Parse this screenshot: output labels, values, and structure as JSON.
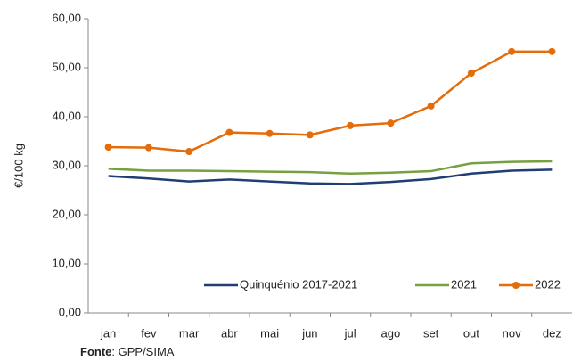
{
  "chart_data": {
    "type": "line",
    "y_label": "€/100 kg",
    "categories": [
      "jan",
      "fev",
      "mar",
      "abr",
      "mai",
      "jun",
      "jul",
      "ago",
      "set",
      "out",
      "nov",
      "dez"
    ],
    "series": [
      {
        "name": "Quinquénio  2017-2021",
        "color": "#1f3f73",
        "marker": false,
        "values": [
          27.9,
          27.4,
          26.8,
          27.2,
          26.8,
          26.4,
          26.3,
          26.7,
          27.3,
          28.4,
          29.0,
          29.2
        ]
      },
      {
        "name": "2021",
        "color": "#77a040",
        "marker": false,
        "values": [
          29.4,
          29.0,
          29.0,
          28.9,
          28.8,
          28.7,
          28.4,
          28.6,
          28.9,
          30.5,
          30.8,
          30.9
        ]
      },
      {
        "name": "2022",
        "color": "#e46c0a",
        "marker": true,
        "values": [
          33.8,
          33.7,
          32.9,
          36.8,
          36.6,
          36.3,
          38.2,
          38.7,
          42.2,
          48.9,
          53.3,
          53.3
        ]
      }
    ],
    "ylim": [
      0,
      60
    ],
    "yticks": [
      {
        "value": 0,
        "label": "0,00"
      },
      {
        "value": 10,
        "label": "10,00"
      },
      {
        "value": 20,
        "label": "20,00"
      },
      {
        "value": 30,
        "label": "30,00"
      },
      {
        "value": 40,
        "label": "40,00"
      },
      {
        "value": 50,
        "label": "50,00"
      },
      {
        "value": 60,
        "label": "60,00"
      }
    ],
    "grid": false,
    "legend": "bottom-right",
    "source_label": "Fonte",
    "source_text": ": GPP/SIMA"
  }
}
